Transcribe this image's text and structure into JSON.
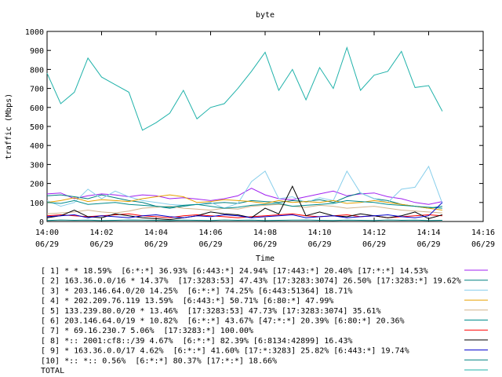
{
  "chart_data": {
    "type": "line",
    "title": "byte",
    "xlabel": "Time",
    "ylabel": "traffic (Mbps)",
    "ylim": [
      0,
      1000
    ],
    "yticks": [
      0,
      100,
      200,
      300,
      400,
      500,
      600,
      700,
      800,
      900,
      1000
    ],
    "xlim_minutes": [
      0,
      16
    ],
    "xticks": [
      {
        "t": 0,
        "time": "14:00",
        "date": "06/29"
      },
      {
        "t": 2,
        "time": "14:02",
        "date": "06/29"
      },
      {
        "t": 4,
        "time": "14:04",
        "date": "06/29"
      },
      {
        "t": 6,
        "time": "14:06",
        "date": "06/29"
      },
      {
        "t": 8,
        "time": "14:08",
        "date": "06/29"
      },
      {
        "t": 10,
        "time": "14:10",
        "date": "06/29"
      },
      {
        "t": 12,
        "time": "14:12",
        "date": "06/29"
      },
      {
        "t": 14,
        "time": "14:14",
        "date": "06/29"
      },
      {
        "t": 16,
        "time": "14:16",
        "date": "06/29"
      }
    ],
    "x": [
      0,
      0.5,
      1,
      1.5,
      2,
      2.5,
      3,
      3.5,
      4,
      4.5,
      5,
      5.5,
      6,
      6.5,
      7,
      7.5,
      8,
      8.5,
      9,
      9.5,
      10,
      10.5,
      11,
      11.5,
      12,
      12.5,
      13,
      13.5,
      14,
      14.5
    ],
    "series": [
      {
        "name": "[ 1] * * 18.59%  [6:*:*] 36.93% [6:443:*] 24.94% [17:443:*] 20.40% [17:*:*] 14.53%",
        "color": "#a020f0",
        "values": [
          145,
          150,
          120,
          135,
          145,
          140,
          130,
          140,
          135,
          120,
          125,
          118,
          110,
          120,
          135,
          175,
          140,
          120,
          115,
          130,
          145,
          160,
          135,
          145,
          150,
          130,
          120,
          100,
          90,
          105
        ]
      },
      {
        "name": "[ 2] 163.36.0.0/16 * 14.37%  [17:3283:53] 47.43% [17:3283:3074] 26.50% [17:3283:*] 19.62%",
        "color": "#008080",
        "values": [
          135,
          140,
          130,
          120,
          140,
          125,
          110,
          100,
          80,
          70,
          80,
          90,
          95,
          100,
          95,
          110,
          105,
          100,
          110,
          105,
          115,
          100,
          130,
          150,
          120,
          110,
          90,
          80,
          70,
          80
        ]
      },
      {
        "name": "[ 3] * 203.146.64.0/20 14.25%  [6:*:*] 74.25% [6:443:51364] 18.71%",
        "color": "#87ceeb",
        "values": [
          110,
          80,
          100,
          170,
          120,
          160,
          130,
          110,
          100,
          90,
          85,
          90,
          100,
          70,
          95,
          210,
          265,
          120,
          130,
          100,
          125,
          110,
          265,
          150,
          120,
          100,
          170,
          180,
          290,
          95
        ]
      },
      {
        "name": "[ 4] * 202.209.76.119 13.59%  [6:443:*] 50.71% [6:80:*] 47.99%",
        "color": "#e6a000",
        "values": [
          100,
          110,
          125,
          105,
          115,
          110,
          105,
          120,
          130,
          140,
          130,
          100,
          105,
          115,
          110,
          105,
          95,
          110,
          100,
          105,
          100,
          110,
          95,
          100,
          110,
          100,
          90,
          80,
          70,
          60
        ]
      },
      {
        "name": "[ 5] 133.239.80.0/20 * 13.46%  [17:3283:53] 47.73% [17:3283:3074] 35.61%",
        "color": "#d2b48c",
        "values": [
          40,
          45,
          50,
          60,
          50,
          45,
          55,
          70,
          75,
          80,
          70,
          65,
          60,
          70,
          65,
          80,
          85,
          90,
          80,
          75,
          85,
          80,
          70,
          75,
          80,
          70,
          60,
          55,
          50,
          45
        ]
      },
      {
        "name": "[ 6] 203.146.64.0/19 * 10.82%  [6:*:*] 43.67% [47:*:*] 20.39% [6:80:*] 20.36%",
        "color": "#008b8b",
        "values": [
          100,
          95,
          110,
          90,
          95,
          100,
          90,
          85,
          80,
          75,
          85,
          90,
          80,
          70,
          75,
          85,
          90,
          95,
          80,
          85,
          90,
          95,
          110,
          105,
          100,
          90,
          85,
          80,
          75,
          70
        ]
      },
      {
        "name": "[ 7] * 69.16.230.7 5.06%  [17:3283:*] 100.00%",
        "color": "#ff0000",
        "values": [
          30,
          35,
          30,
          25,
          30,
          35,
          40,
          30,
          25,
          20,
          30,
          35,
          30,
          25,
          20,
          25,
          30,
          35,
          40,
          30,
          25,
          30,
          35,
          25,
          30,
          20,
          25,
          30,
          35,
          30
        ]
      },
      {
        "name": "[ 8] *:: 2001:cf8::/39 4.67%  [6:*:*] 82.39% [6:8134:42899] 16.43%",
        "color": "#000000",
        "values": [
          20,
          30,
          60,
          25,
          20,
          40,
          30,
          20,
          15,
          10,
          20,
          30,
          50,
          40,
          35,
          20,
          70,
          40,
          185,
          30,
          50,
          30,
          25,
          40,
          30,
          20,
          30,
          50,
          15,
          35
        ]
      },
      {
        "name": "[ 9] * 163.36.0.0/17 4.62%  [6:*:*] 41.60% [17:*:3283] 25.82% [6:443:*] 19.74%",
        "color": "#0000cd",
        "values": [
          25,
          30,
          35,
          20,
          30,
          25,
          20,
          30,
          35,
          25,
          20,
          30,
          25,
          35,
          30,
          20,
          25,
          30,
          35,
          20,
          25,
          30,
          20,
          25,
          30,
          35,
          25,
          20,
          30,
          100
        ]
      },
      {
        "name": "[10] *:: *:: 0.56%  [6:*:*] 80.37% [17:*:*] 18.66%",
        "color": "#008080",
        "values": [
          5,
          8,
          6,
          7,
          5,
          6,
          8,
          7,
          6,
          5,
          7,
          6,
          5,
          8,
          6,
          7,
          5,
          6,
          7,
          8,
          6,
          5,
          7,
          6,
          5,
          8,
          6,
          7,
          5,
          6
        ]
      },
      {
        "name": "TOTAL",
        "color": "#20b2aa",
        "values": [
          780,
          620,
          680,
          860,
          760,
          720,
          680,
          480,
          520,
          570,
          690,
          540,
          600,
          620,
          700,
          790,
          890,
          690,
          800,
          640,
          810,
          700,
          915,
          690,
          770,
          790,
          895,
          705,
          715,
          580
        ]
      }
    ]
  }
}
